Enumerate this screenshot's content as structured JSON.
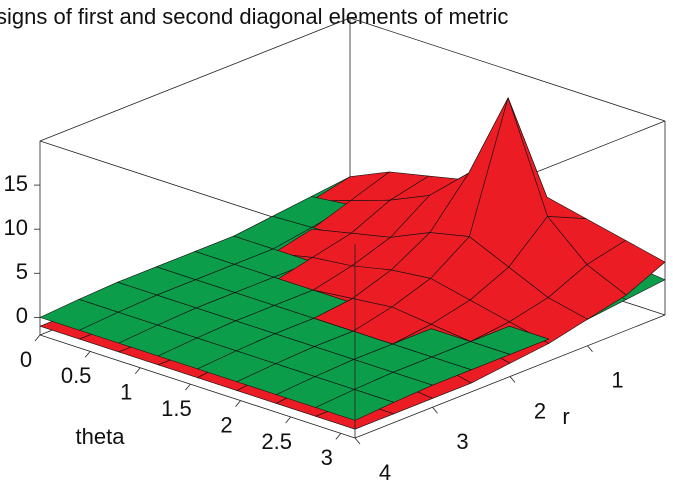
{
  "chart_data": {
    "type": "surface3d",
    "title": "signs of first and second diagonal elements of metric",
    "xlabel": "theta",
    "ylabel": "r",
    "x": [
      0,
      0.3927,
      0.7854,
      1.1781,
      1.5708,
      1.9635,
      2.3562,
      2.7489,
      3.1416
    ],
    "y": [
      0,
      0.5,
      1,
      1.5,
      2,
      2.5,
      3,
      3.5,
      4
    ],
    "xlim": [
      0,
      3.1416
    ],
    "ylim": [
      0,
      4
    ],
    "zlim": [
      -2,
      20
    ],
    "xticks": [
      0,
      0.5,
      1,
      1.5,
      2,
      2.5,
      3
    ],
    "yticks": [
      1,
      2,
      3,
      4
    ],
    "zticks": [
      0,
      5,
      10,
      15
    ],
    "series": [
      {
        "color": "#ec1c24",
        "z": [
          [
            2,
            4,
            5,
            6,
            7,
            7,
            6,
            5,
            4
          ],
          [
            1,
            2.5,
            4,
            6,
            10,
            20,
            8,
            4,
            2
          ],
          [
            0,
            1,
            2,
            3,
            5,
            6,
            4,
            2,
            1
          ],
          [
            -0.5,
            0,
            1,
            1.5,
            2.5,
            3,
            2,
            1,
            0
          ],
          [
            -1,
            -0.5,
            0,
            0.5,
            1,
            1.5,
            1,
            0.5,
            -0.5
          ],
          [
            -1,
            -1,
            -0.5,
            0,
            0.5,
            0.5,
            0.5,
            0,
            -1
          ],
          [
            -1,
            -1,
            -1,
            -0.5,
            0,
            0,
            0,
            -0.5,
            -1
          ],
          [
            -1,
            -1,
            -1,
            -1,
            -0.5,
            -0.5,
            -0.5,
            -1,
            -1
          ],
          [
            -1,
            -1,
            -1,
            -1,
            -1,
            -1,
            -1,
            -1,
            -1
          ]
        ]
      },
      {
        "color": "#0c9d4a",
        "z": [
          [
            2,
            2.5,
            3,
            3,
            3,
            3,
            3,
            2.5,
            2
          ],
          [
            1.5,
            2,
            2,
            2,
            2,
            2,
            2,
            2,
            1.5
          ],
          [
            1,
            1.2,
            1.5,
            1.5,
            1.5,
            1.5,
            1.5,
            1.2,
            1
          ],
          [
            0.5,
            0.5,
            0.5,
            0.5,
            0.5,
            0.5,
            0.5,
            0.5,
            0.5
          ],
          [
            0.5,
            0.5,
            0.5,
            0.5,
            0.5,
            0.5,
            0.5,
            0.5,
            0.5
          ],
          [
            0.5,
            0.5,
            0.5,
            0.5,
            0.5,
            0.5,
            0.5,
            0.5,
            0.5
          ],
          [
            0.5,
            0.5,
            0.5,
            0.5,
            0.5,
            0.5,
            0.5,
            0.5,
            0.5
          ],
          [
            0.3,
            0.3,
            0.3,
            0.3,
            0.3,
            0.3,
            0.3,
            0.3,
            0.3
          ],
          [
            0,
            0,
            0,
            0,
            0,
            0,
            0,
            0,
            0
          ]
        ]
      }
    ]
  }
}
